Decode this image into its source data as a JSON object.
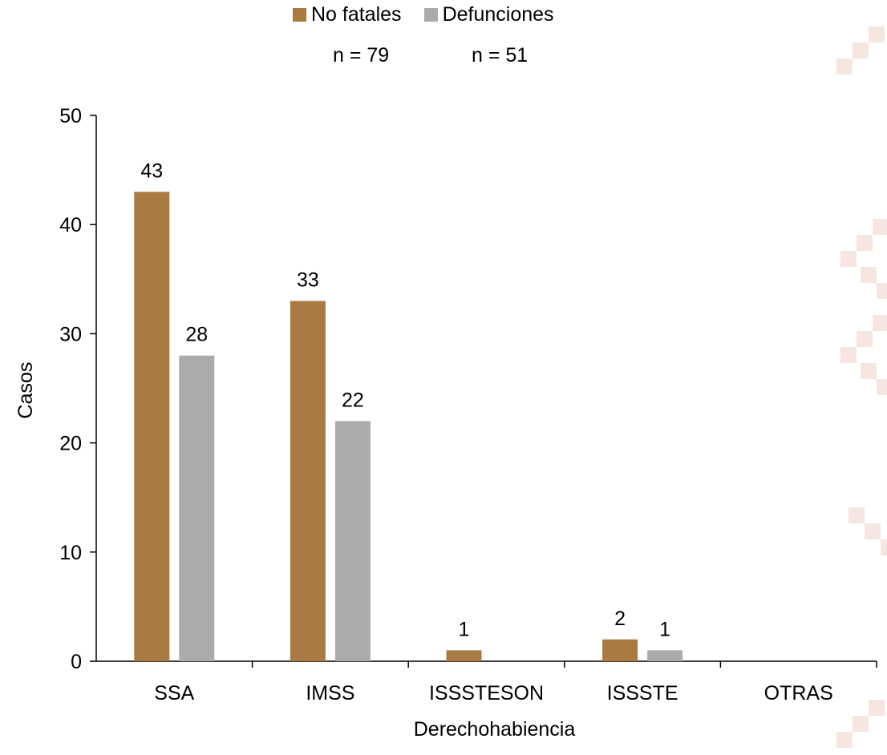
{
  "colors": {
    "no_fatales": "#A97A42",
    "defunciones": "#ADABAA",
    "watermark": "#F6E6E2"
  },
  "legend": {
    "items": [
      "No fatales",
      "Defunciones"
    ],
    "counts": [
      "n = 79",
      "n = 51"
    ]
  },
  "chart_data": {
    "type": "bar",
    "categories": [
      "SSA",
      "IMSS",
      "ISSSTESON",
      "ISSSTE",
      "OTRAS"
    ],
    "series": [
      {
        "name": "No fatales",
        "values": [
          43,
          33,
          1,
          2,
          0
        ]
      },
      {
        "name": "Defunciones",
        "values": [
          28,
          22,
          0,
          1,
          0
        ]
      }
    ],
    "data_labels": [
      [
        "43",
        "33",
        "1",
        "2",
        ""
      ],
      [
        "28",
        "22",
        "",
        "1",
        ""
      ]
    ],
    "xlabel": "Derechohabiencia",
    "ylabel": "Casos",
    "ylim": [
      0,
      50
    ],
    "yticks": [
      0,
      10,
      20,
      30,
      40,
      50
    ],
    "grid": false,
    "legend_position": "top"
  }
}
